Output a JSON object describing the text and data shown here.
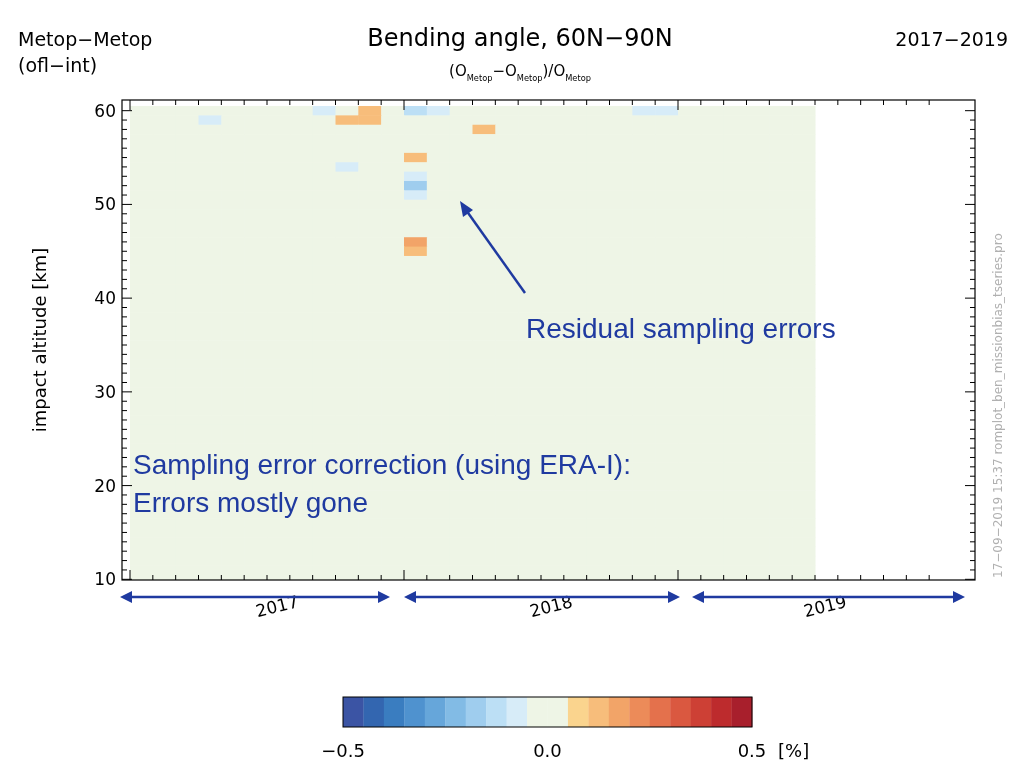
{
  "chart_data": {
    "type": "heatmap",
    "title": "Bending angle, 60N−90N",
    "subtitle": "(O$_{Metop}$−O$_{Metop}$)/O$_{Metop}$",
    "ylabel": "impact altitude [km]",
    "clabel": "[%]",
    "annotations": [
      "Metop−Metop\n(ofl−int)",
      "2017−2019",
      "Residual sampling errors",
      "Sampling error correction (using ERA-I):\nErrors mostly gone",
      "17−09−2019 15:37   romplot_ben_missionbias_tseries.pro"
    ],
    "categories": [
      null,
      null,
      null,
      null,
      null,
      null,
      "2017",
      null,
      null,
      null,
      null,
      null,
      null,
      null,
      null,
      null,
      null,
      null,
      "2018",
      null,
      null,
      null,
      null,
      null,
      null,
      null,
      null,
      null,
      null,
      null,
      "2019",
      null,
      null,
      null,
      null,
      null
    ],
    "y_categories": [
      "60",
      null,
      null,
      null,
      null,
      null,
      null,
      null,
      null,
      null,
      "50",
      null,
      null,
      null,
      null,
      null,
      null,
      null,
      null,
      null,
      "40",
      null,
      null,
      null,
      null,
      null,
      null,
      null,
      null,
      null,
      "30",
      null,
      null,
      null,
      null,
      null,
      null,
      null,
      null,
      null,
      "20",
      null,
      null,
      null,
      null,
      null,
      null,
      null,
      null,
      null,
      "10"
    ],
    "clim": [
      -0.5,
      0.5
    ],
    "cticks": [
      {
        "value": -0.5,
        "label": "−0.5"
      },
      {
        "value": 0,
        "label": "0.0"
      },
      {
        "value": 0.5,
        "label": "0.5"
      }
    ],
    "cells": [
      [
        0,
        0,
        0,
        0,
        0,
        0,
        0,
        0,
        -0.1,
        0,
        0.1,
        0,
        -0.15,
        -0.1,
        0,
        0,
        0,
        0,
        0,
        0,
        0,
        0,
        -0.1,
        -0.1,
        0,
        0,
        0,
        0,
        0,
        0,
        null,
        null,
        null,
        null,
        null,
        null
      ],
      [
        0,
        0,
        0,
        -0.1,
        0,
        0,
        0,
        0,
        0,
        0.1,
        0.1,
        0,
        0,
        0,
        0,
        0,
        0,
        0,
        0,
        0,
        0,
        0,
        0,
        0,
        0,
        0,
        0,
        0,
        0,
        0,
        null,
        null,
        null,
        null,
        null,
        null
      ],
      [
        0,
        0,
        0,
        0,
        0,
        0,
        0,
        0,
        0,
        0,
        0,
        0,
        0,
        0,
        0,
        0.1,
        0,
        0,
        0,
        0,
        0,
        0,
        0,
        0,
        0,
        0,
        0,
        0,
        0,
        0,
        null,
        null,
        null,
        null,
        null,
        null
      ],
      [
        0,
        0,
        0,
        0,
        0,
        0,
        0,
        0,
        0,
        0,
        0,
        0,
        0,
        0,
        0,
        0,
        0,
        0,
        0,
        0,
        0,
        0,
        0,
        0,
        0,
        0,
        0,
        0,
        0,
        0,
        null,
        null,
        null,
        null,
        null,
        null
      ],
      [
        0,
        0,
        0,
        0,
        0,
        0,
        0,
        0,
        0,
        0,
        0,
        0,
        0,
        0,
        0,
        0,
        0,
        0,
        0,
        0,
        0,
        0,
        0,
        0,
        0,
        0,
        0,
        0,
        0,
        0,
        null,
        null,
        null,
        null,
        null,
        null
      ],
      [
        0,
        0,
        0,
        0,
        0,
        0,
        0,
        0,
        0,
        0,
        0,
        0,
        0.1,
        0,
        0,
        0,
        0,
        0,
        0,
        0,
        0,
        0,
        0,
        0,
        0,
        0,
        0,
        0,
        0,
        0,
        null,
        null,
        null,
        null,
        null,
        null
      ],
      [
        0,
        0,
        0,
        0,
        0,
        0,
        0,
        0,
        0,
        -0.1,
        0,
        0,
        0,
        0,
        0,
        0,
        0,
        0,
        0,
        0,
        0,
        0,
        0,
        0,
        0,
        0,
        0,
        0,
        0,
        0,
        null,
        null,
        null,
        null,
        null,
        null
      ],
      [
        0,
        0,
        0,
        0,
        0,
        0,
        0,
        0,
        0,
        0,
        0,
        0,
        -0.1,
        0,
        0,
        0,
        0,
        0,
        0,
        0,
        0,
        0,
        0,
        0,
        0,
        0,
        0,
        0,
        0,
        0,
        null,
        null,
        null,
        null,
        null,
        null
      ],
      [
        0,
        0,
        0,
        0,
        0,
        0,
        0,
        0,
        0,
        0,
        0,
        0,
        -0.2,
        0,
        0,
        0,
        0,
        0,
        0,
        0,
        0,
        0,
        0,
        0,
        0,
        0,
        0,
        0,
        0,
        0,
        null,
        null,
        null,
        null,
        null,
        null
      ],
      [
        0,
        0,
        0,
        0,
        0,
        0,
        0,
        0,
        0,
        0,
        0,
        0,
        -0.1,
        0,
        0,
        0,
        0,
        0,
        0,
        0,
        0,
        0,
        0,
        0,
        0,
        0,
        0,
        0,
        0,
        0,
        null,
        null,
        null,
        null,
        null,
        null
      ],
      [
        0,
        0,
        0,
        0,
        0,
        0,
        0,
        0,
        0,
        0,
        0,
        0,
        0,
        0,
        0,
        0,
        0,
        0,
        0,
        0,
        0,
        0,
        0,
        0,
        0,
        0,
        0,
        0,
        0,
        0,
        null,
        null,
        null,
        null,
        null,
        null
      ],
      [
        0,
        0,
        0,
        0,
        0,
        0,
        0,
        0,
        0,
        0,
        0,
        0,
        0,
        0,
        0,
        0,
        0,
        0,
        0,
        0,
        0,
        0,
        0,
        0,
        0,
        0,
        0,
        0,
        0,
        0,
        null,
        null,
        null,
        null,
        null,
        null
      ],
      [
        0,
        0,
        0,
        0,
        0,
        0,
        0,
        0,
        0,
        0,
        0,
        0,
        0,
        0,
        0,
        0,
        0,
        0,
        0,
        0,
        0,
        0,
        0,
        0,
        0,
        0,
        0,
        0,
        0,
        0,
        null,
        null,
        null,
        null,
        null,
        null
      ],
      [
        0,
        0,
        0,
        0,
        0,
        0,
        0,
        0,
        0,
        0,
        0,
        0,
        0,
        0,
        0,
        0,
        0,
        0,
        0,
        0,
        0,
        0,
        0,
        0,
        0,
        0,
        0,
        0,
        0,
        0,
        null,
        null,
        null,
        null,
        null,
        null
      ],
      [
        0,
        0,
        0,
        0,
        0,
        0,
        0,
        0,
        0,
        0,
        0,
        0,
        0.15,
        0,
        0,
        0,
        0,
        0,
        0,
        0,
        0,
        0,
        0,
        0,
        0,
        0,
        0,
        0,
        0,
        0,
        null,
        null,
        null,
        null,
        null,
        null
      ],
      [
        0,
        0,
        0,
        0,
        0,
        0,
        0,
        0,
        0,
        0,
        0,
        0,
        0.1,
        0,
        0,
        0,
        0,
        0,
        0,
        0,
        0,
        0,
        0,
        0,
        0,
        0,
        0,
        0,
        0,
        0,
        null,
        null,
        null,
        null,
        null,
        null
      ],
      [
        0,
        0,
        0,
        0,
        0,
        0,
        0,
        0,
        0,
        0,
        0,
        0,
        0,
        0,
        0,
        0,
        0,
        0,
        0,
        0,
        0,
        0,
        0,
        0,
        0,
        0,
        0,
        0,
        0,
        0,
        null,
        null,
        null,
        null,
        null,
        null
      ],
      [
        0,
        0,
        0,
        0,
        0,
        0,
        0,
        0,
        0,
        0,
        0,
        0,
        0,
        0,
        0,
        0,
        0,
        0,
        0,
        0,
        0,
        0,
        0,
        0,
        0,
        0,
        0,
        0,
        0,
        0,
        null,
        null,
        null,
        null,
        null,
        null
      ],
      [
        0,
        0,
        0,
        0,
        0,
        0,
        0,
        0,
        0,
        0,
        0,
        0,
        0,
        0,
        0,
        0,
        0,
        0,
        0,
        0,
        0,
        0,
        0,
        0,
        0,
        0,
        0,
        0,
        0,
        0,
        null,
        null,
        null,
        null,
        null,
        null
      ],
      [
        0,
        0,
        0,
        0,
        0,
        0,
        0,
        0,
        0,
        0,
        0,
        0,
        0,
        0,
        0,
        0,
        0,
        0,
        0,
        0,
        0,
        0,
        0,
        0,
        0,
        0,
        0,
        0,
        0,
        0,
        null,
        null,
        null,
        null,
        null,
        null
      ],
      [
        0,
        0,
        0,
        0,
        0,
        0,
        0,
        0,
        0,
        0,
        0,
        0,
        0,
        0,
        0,
        0,
        0,
        0,
        0,
        0,
        0,
        0,
        0,
        0,
        0,
        0,
        0,
        0,
        0,
        0,
        null,
        null,
        null,
        null,
        null,
        null
      ],
      [
        0,
        0,
        0,
        0,
        0,
        0,
        0,
        0,
        0,
        0,
        0,
        0,
        0,
        0,
        0,
        0,
        0,
        0,
        0,
        0,
        0,
        0,
        0,
        0,
        0,
        0,
        0,
        0,
        0,
        0,
        null,
        null,
        null,
        null,
        null,
        null
      ],
      [
        0,
        0,
        0,
        0,
        0,
        0,
        0,
        0,
        0,
        0,
        0,
        0,
        0,
        0,
        0,
        0,
        0,
        0,
        0,
        0,
        0,
        0,
        0,
        0,
        0,
        0,
        0,
        0,
        0,
        0,
        null,
        null,
        null,
        null,
        null,
        null
      ],
      [
        0,
        0,
        0,
        0,
        0,
        0,
        0,
        0,
        0,
        0,
        0,
        0,
        0,
        0,
        0,
        0,
        0,
        0,
        0,
        0,
        0,
        0,
        0,
        0,
        0,
        0,
        0,
        0,
        0,
        0,
        null,
        null,
        null,
        null,
        null,
        null
      ],
      [
        0,
        0,
        0,
        0,
        0,
        0,
        0,
        0,
        0,
        0,
        0,
        0,
        0,
        0,
        0,
        0,
        0,
        0,
        0,
        0,
        0,
        0,
        0,
        0,
        0,
        0,
        0,
        0,
        0,
        0,
        null,
        null,
        null,
        null,
        null,
        null
      ],
      [
        0,
        0,
        0,
        0,
        0,
        0,
        0,
        0,
        0,
        0,
        0,
        0,
        0,
        0,
        0,
        0,
        0,
        0,
        0,
        0,
        0,
        0,
        0,
        0,
        0,
        0,
        0,
        0,
        0,
        0,
        null,
        null,
        null,
        null,
        null,
        null
      ],
      [
        0,
        0,
        0,
        0,
        0,
        0,
        0,
        0,
        0,
        0,
        0,
        0,
        0,
        0,
        0,
        0,
        0,
        0,
        0,
        0,
        0,
        0,
        0,
        0,
        0,
        0,
        0,
        0,
        0,
        0,
        null,
        null,
        null,
        null,
        null,
        null
      ],
      [
        0,
        0,
        0,
        0,
        0,
        0,
        0,
        0,
        0,
        0,
        0,
        0,
        0,
        0,
        0,
        0,
        0,
        0,
        0,
        0,
        0,
        0,
        0,
        0,
        0,
        0,
        0,
        0,
        0,
        0,
        null,
        null,
        null,
        null,
        null,
        null
      ],
      [
        0,
        0,
        0,
        0,
        0,
        0,
        0,
        0,
        0,
        0,
        0,
        0,
        0,
        0,
        0,
        0,
        0,
        0,
        0,
        0,
        0,
        0,
        0,
        0,
        0,
        0,
        0,
        0,
        0,
        0,
        null,
        null,
        null,
        null,
        null,
        null
      ],
      [
        0,
        0,
        0,
        0,
        0,
        0,
        0,
        0,
        0,
        0,
        0,
        0,
        0,
        0,
        0,
        0,
        0,
        0,
        0,
        0,
        0,
        0,
        0,
        0,
        0,
        0,
        0,
        0,
        0,
        0,
        null,
        null,
        null,
        null,
        null,
        null
      ],
      [
        0,
        0,
        0,
        0,
        0,
        0,
        0,
        0,
        0,
        0,
        0,
        0,
        0,
        0,
        0,
        0,
        0,
        0,
        0,
        0,
        0,
        0,
        0,
        0,
        0,
        0,
        0,
        0,
        0,
        0,
        null,
        null,
        null,
        null,
        null,
        null
      ],
      [
        0,
        0,
        0,
        0,
        0,
        0,
        0,
        0,
        0,
        0,
        0,
        0,
        0,
        0,
        0,
        0,
        0,
        0,
        0,
        0,
        0,
        0,
        0,
        0,
        0,
        0,
        0,
        0,
        0,
        0,
        null,
        null,
        null,
        null,
        null,
        null
      ],
      [
        0,
        0,
        0,
        0,
        0,
        0,
        0,
        0,
        0,
        0,
        0,
        0,
        0,
        0,
        0,
        0,
        0,
        0,
        0,
        0,
        0,
        0,
        0,
        0,
        0,
        0,
        0,
        0,
        0,
        0,
        null,
        null,
        null,
        null,
        null,
        null
      ],
      [
        0,
        0,
        0,
        0,
        0,
        0,
        0,
        0,
        0,
        0,
        0,
        0,
        0,
        0,
        0,
        0,
        0,
        0,
        0,
        0,
        0,
        0,
        0,
        0,
        0,
        0,
        0,
        0,
        0,
        0,
        null,
        null,
        null,
        null,
        null,
        null
      ],
      [
        0,
        0,
        0,
        0,
        0,
        0,
        0,
        0,
        0,
        0,
        0,
        0,
        0,
        0,
        0,
        0,
        0,
        0,
        0,
        0,
        0,
        0,
        0,
        0,
        0,
        0,
        0,
        0,
        0,
        0,
        null,
        null,
        null,
        null,
        null,
        null
      ],
      [
        0,
        0,
        0,
        0,
        0,
        0,
        0,
        0,
        0,
        0,
        0,
        0,
        0,
        0,
        0,
        0,
        0,
        0,
        0,
        0,
        0,
        0,
        0,
        0,
        0,
        0,
        0,
        0,
        0,
        0,
        null,
        null,
        null,
        null,
        null,
        null
      ],
      [
        0,
        0,
        0,
        0,
        0,
        0,
        0,
        0,
        0,
        0,
        0,
        0,
        0,
        0,
        0,
        0,
        0,
        0,
        0,
        0,
        0,
        0,
        0,
        0,
        0,
        0,
        0,
        0,
        0,
        0,
        null,
        null,
        null,
        null,
        null,
        null
      ],
      [
        0,
        0,
        0,
        0,
        0,
        0,
        0,
        0,
        0,
        0,
        0,
        0,
        0,
        0,
        0,
        0,
        0,
        0,
        0,
        0,
        0,
        0,
        0,
        0,
        0,
        0,
        0,
        0,
        0,
        0,
        null,
        null,
        null,
        null,
        null,
        null
      ],
      [
        0,
        0,
        0,
        0,
        0,
        0,
        0,
        0,
        0,
        0,
        0,
        0,
        0,
        0,
        0,
        0,
        0,
        0,
        0,
        0,
        0,
        0,
        0,
        0,
        0,
        0,
        0,
        0,
        0,
        0,
        null,
        null,
        null,
        null,
        null,
        null
      ],
      [
        0,
        0,
        0,
        0,
        0,
        0,
        0,
        0,
        0,
        0,
        0,
        0,
        0,
        0,
        0,
        0,
        0,
        0,
        0,
        0,
        0,
        0,
        0,
        0,
        0,
        0,
        0,
        0,
        0,
        0,
        null,
        null,
        null,
        null,
        null,
        null
      ],
      [
        0,
        0,
        0,
        0,
        0,
        0,
        0,
        0,
        0,
        0,
        0,
        0,
        0,
        0,
        0,
        0,
        0,
        0,
        0,
        0,
        0,
        0,
        0,
        0,
        0,
        0,
        0,
        0,
        0,
        0,
        null,
        null,
        null,
        null,
        null,
        null
      ],
      [
        0,
        0,
        0,
        0,
        0,
        0,
        0,
        0,
        0,
        0,
        0,
        0,
        0,
        0,
        0,
        0,
        0,
        0,
        0,
        0,
        0,
        0,
        0,
        0,
        0,
        0,
        0,
        0,
        0,
        0,
        null,
        null,
        null,
        null,
        null,
        null
      ],
      [
        0,
        0,
        0,
        0,
        0,
        0,
        0,
        0,
        0,
        0,
        0,
        0,
        0,
        0,
        0,
        0,
        0,
        0,
        0,
        0,
        0,
        0,
        0,
        0,
        0,
        0,
        0,
        0,
        0,
        0,
        null,
        null,
        null,
        null,
        null,
        null
      ],
      [
        0,
        0,
        0,
        0,
        0,
        0,
        0,
        0,
        0,
        0,
        0,
        0,
        0,
        0,
        0,
        0,
        0,
        0,
        0,
        0,
        0,
        0,
        0,
        0,
        0,
        0,
        0,
        0,
        0,
        0,
        null,
        null,
        null,
        null,
        null,
        null
      ],
      [
        0,
        0,
        0,
        0,
        0,
        0,
        0,
        0,
        0,
        0,
        0,
        0,
        0,
        0,
        0,
        0,
        0,
        0,
        0,
        0,
        0,
        0,
        0,
        0,
        0,
        0,
        0,
        0,
        0,
        0,
        null,
        null,
        null,
        null,
        null,
        null
      ],
      [
        0,
        0,
        0,
        0,
        0,
        0,
        0,
        0,
        0,
        0,
        0,
        0,
        0,
        0,
        0,
        0,
        0,
        0,
        0,
        0,
        0,
        0,
        0,
        0,
        0,
        0,
        0,
        0,
        0,
        0,
        null,
        null,
        null,
        null,
        null,
        null
      ],
      [
        0,
        0,
        0,
        0,
        0,
        0,
        0,
        0,
        0,
        0,
        0,
        0,
        0,
        0,
        0,
        0,
        0,
        0,
        0,
        0,
        0,
        0,
        0,
        0,
        0,
        0,
        0,
        0,
        0,
        0,
        null,
        null,
        null,
        null,
        null,
        null
      ],
      [
        0,
        0,
        0,
        0,
        0,
        0,
        0,
        0,
        0,
        0,
        0,
        0,
        0,
        0,
        0,
        0,
        0,
        0,
        0,
        0,
        0,
        0,
        0,
        0,
        0,
        0,
        0,
        0,
        0,
        0,
        null,
        null,
        null,
        null,
        null,
        null
      ],
      [
        0,
        0,
        0,
        0,
        0,
        0,
        0,
        0,
        0,
        0,
        0,
        0,
        0,
        0,
        0,
        0,
        0,
        0,
        0,
        0,
        0,
        0,
        0,
        0,
        0,
        0,
        0,
        0,
        0,
        0,
        null,
        null,
        null,
        null,
        null,
        null
      ],
      [
        0,
        0,
        0,
        0,
        0,
        0,
        0,
        0,
        0,
        0,
        0,
        0,
        0,
        0,
        0,
        0,
        0,
        0,
        0,
        0,
        0,
        0,
        0,
        0,
        0,
        0,
        0,
        0,
        0,
        0,
        null,
        null,
        null,
        null,
        null,
        null
      ],
      [
        0,
        0,
        0,
        0,
        0,
        0,
        0,
        0,
        0,
        0,
        0,
        0,
        0,
        0,
        0,
        0,
        0,
        0,
        0,
        0,
        0,
        0,
        0,
        0,
        0,
        0,
        0,
        0,
        0,
        0,
        null,
        null,
        null,
        null,
        null,
        null
      ]
    ]
  }
}
